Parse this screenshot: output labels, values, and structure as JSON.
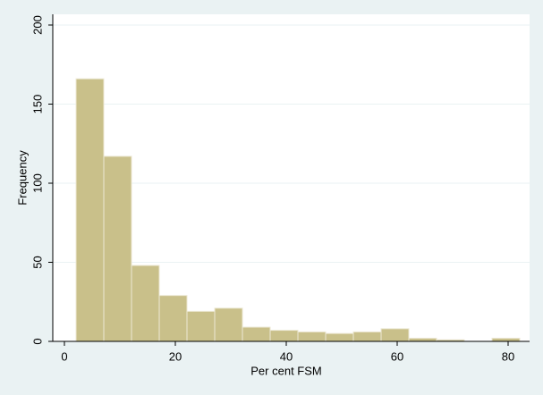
{
  "chart_data": {
    "type": "histogram",
    "xlabel": "Per cent FSM",
    "ylabel": "Frequency",
    "bins": [
      2.1,
      7.1,
      12.1,
      17.1,
      22.1,
      27.1,
      32.1,
      37.1,
      42.1,
      47.1,
      52.1,
      57.1,
      62.1,
      67.1,
      72.1,
      77.1,
      82.1
    ],
    "counts": [
      166,
      117,
      48,
      29,
      19,
      21,
      9,
      7,
      6,
      5,
      6,
      8,
      2,
      1,
      0,
      2
    ],
    "color": "#c9c08a",
    "xlim": [
      0,
      80
    ],
    "xticks": [
      0,
      20,
      40,
      60,
      80
    ],
    "ylim": [
      0,
      200
    ],
    "yticks": [
      0,
      50,
      100,
      150,
      200
    ],
    "grid": true
  }
}
